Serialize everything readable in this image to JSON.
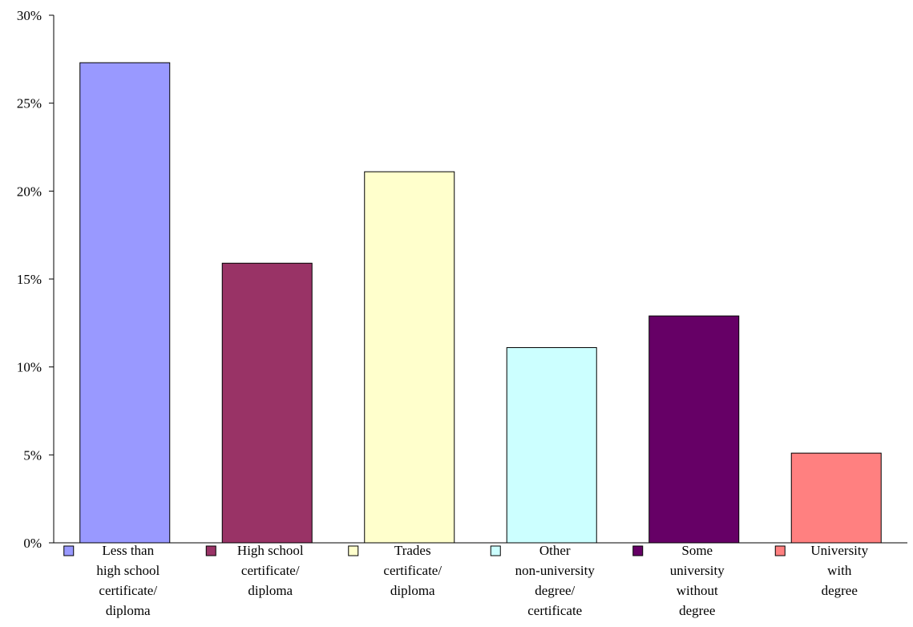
{
  "chart_data": {
    "type": "bar",
    "title": "",
    "xlabel": "",
    "ylabel": "",
    "ylim": [
      0,
      30
    ],
    "yticks": [
      0,
      5,
      10,
      15,
      20,
      25,
      30
    ],
    "ytick_labels": [
      "0%",
      "5%",
      "10%",
      "15%",
      "20%",
      "25%",
      "30%"
    ],
    "grid": false,
    "legend": "inline-below-bars",
    "categories": [
      [
        "Less than",
        "high school",
        "certificate/",
        "diploma"
      ],
      [
        "High school",
        "certificate/",
        "diploma"
      ],
      [
        "Trades",
        "certificate/",
        "diploma"
      ],
      [
        "Other",
        "non-university",
        "degree/",
        "certificate"
      ],
      [
        "Some",
        "university",
        "without",
        "degree"
      ],
      [
        "University",
        "with",
        "degree"
      ]
    ],
    "values": [
      27.3,
      15.9,
      21.1,
      11.1,
      12.9,
      5.1
    ],
    "colors": [
      "#9999ff",
      "#993366",
      "#ffffcc",
      "#ccffff",
      "#660066",
      "#ff8080"
    ]
  }
}
